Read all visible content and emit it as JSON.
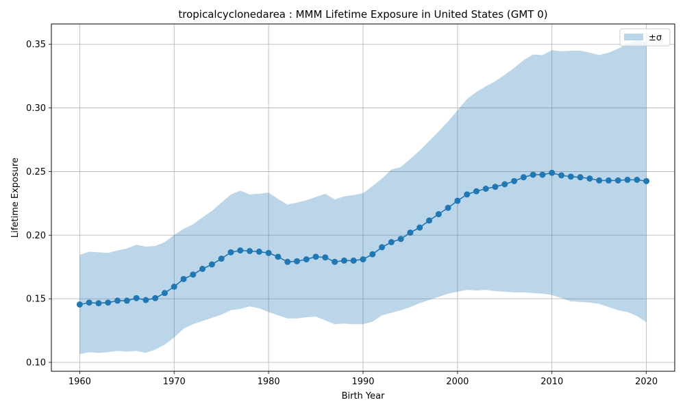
{
  "chart_data": {
    "type": "line",
    "title": "tropicalcyclonedarea : MMM Lifetime Exposure in United States (GMT 0)",
    "xlabel": "Birth Year",
    "ylabel": "Lifetime Exposure",
    "xlim": [
      1957,
      2023
    ],
    "ylim": [
      0.093,
      0.366
    ],
    "xticks": [
      1960,
      1970,
      1980,
      1990,
      2000,
      2010,
      2020
    ],
    "xtick_labels": [
      "1960",
      "1970",
      "1980",
      "1990",
      "2000",
      "2010",
      "2020"
    ],
    "yticks": [
      0.1,
      0.15,
      0.2,
      0.25,
      0.3,
      0.35
    ],
    "ytick_labels": [
      "0.10",
      "0.15",
      "0.20",
      "0.25",
      "0.30",
      "0.35"
    ],
    "grid": true,
    "legend": {
      "position": "top-right",
      "entries": [
        "±σ"
      ]
    },
    "colors": {
      "line": "#1f77b4",
      "band": "#1f77b4",
      "band_alpha": 0.3,
      "grid": "#b0b0b0"
    },
    "x": [
      1960,
      1961,
      1962,
      1963,
      1964,
      1965,
      1966,
      1967,
      1968,
      1969,
      1970,
      1971,
      1972,
      1973,
      1974,
      1975,
      1976,
      1977,
      1978,
      1979,
      1980,
      1981,
      1982,
      1983,
      1984,
      1985,
      1986,
      1987,
      1988,
      1989,
      1990,
      1991,
      1992,
      1993,
      1994,
      1995,
      1996,
      1997,
      1998,
      1999,
      2000,
      2001,
      2002,
      2003,
      2004,
      2005,
      2006,
      2007,
      2008,
      2009,
      2010,
      2011,
      2012,
      2013,
      2014,
      2015,
      2016,
      2017,
      2018,
      2019,
      2020
    ],
    "series": [
      {
        "values": [
          0.1455,
          0.147,
          0.1465,
          0.147,
          0.1485,
          0.1485,
          0.1505,
          0.149,
          0.1505,
          0.1545,
          0.1595,
          0.1655,
          0.169,
          0.1735,
          0.177,
          0.1815,
          0.1865,
          0.188,
          0.1875,
          0.187,
          0.186,
          0.183,
          0.179,
          0.1795,
          0.181,
          0.183,
          0.1825,
          0.179,
          0.18,
          0.18,
          0.181,
          0.185,
          0.1905,
          0.1945,
          0.197,
          0.202,
          0.206,
          0.2115,
          0.2165,
          0.2215,
          0.227,
          0.232,
          0.2345,
          0.2365,
          0.238,
          0.24,
          0.2425,
          0.2455,
          0.2475,
          0.2475,
          0.249,
          0.247,
          0.246,
          0.2455,
          0.2445,
          0.243,
          0.243,
          0.243,
          0.2435,
          0.2435,
          0.2425
        ]
      }
    ],
    "band": {
      "name": "±σ",
      "upper": [
        0.1845,
        0.187,
        0.1865,
        0.186,
        0.188,
        0.1895,
        0.1925,
        0.191,
        0.1915,
        0.1945,
        0.2,
        0.205,
        0.2085,
        0.214,
        0.219,
        0.2255,
        0.232,
        0.235,
        0.232,
        0.2325,
        0.2335,
        0.2285,
        0.224,
        0.2255,
        0.2275,
        0.23,
        0.2325,
        0.228,
        0.2305,
        0.2315,
        0.233,
        0.2385,
        0.2445,
        0.2515,
        0.2535,
        0.26,
        0.2665,
        0.274,
        0.2815,
        0.2895,
        0.298,
        0.307,
        0.3125,
        0.317,
        0.321,
        0.326,
        0.3315,
        0.3375,
        0.342,
        0.3415,
        0.3455,
        0.3445,
        0.345,
        0.345,
        0.3435,
        0.3415,
        0.3435,
        0.3465,
        0.3505,
        0.353,
        0.352
      ],
      "lower": [
        0.1065,
        0.108,
        0.1075,
        0.108,
        0.109,
        0.1085,
        0.109,
        0.1075,
        0.11,
        0.114,
        0.1195,
        0.1265,
        0.13,
        0.1325,
        0.135,
        0.1375,
        0.141,
        0.142,
        0.144,
        0.1425,
        0.1395,
        0.137,
        0.1345,
        0.1345,
        0.1355,
        0.136,
        0.133,
        0.13,
        0.1305,
        0.13,
        0.13,
        0.132,
        0.137,
        0.139,
        0.141,
        0.1435,
        0.1465,
        0.149,
        0.1515,
        0.154,
        0.1555,
        0.157,
        0.1565,
        0.157,
        0.156,
        0.1555,
        0.155,
        0.155,
        0.1545,
        0.154,
        0.153,
        0.1505,
        0.148,
        0.1475,
        0.147,
        0.146,
        0.1435,
        0.141,
        0.1395,
        0.1365,
        0.1315
      ]
    }
  }
}
